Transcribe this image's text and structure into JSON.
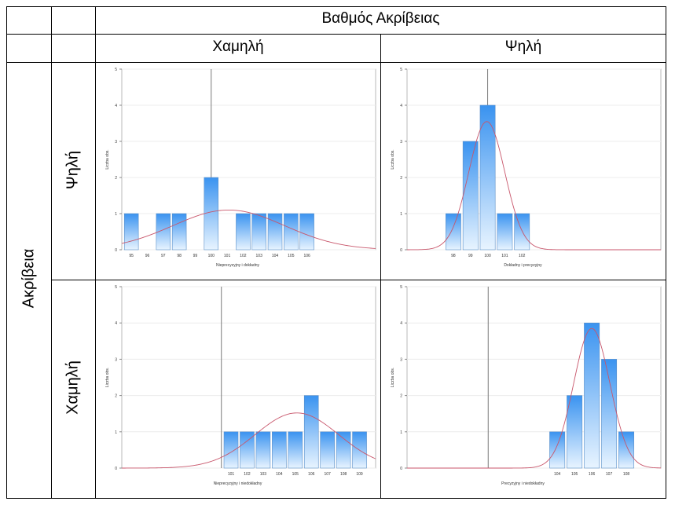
{
  "header": {
    "top": "Βαθμός Ακρίβειας",
    "col_low": "Χαμηλή",
    "col_high": "Ψηλή"
  },
  "rows": {
    "outer": "Ακρίβεια",
    "high": "Ψηλή",
    "low": "Χαμηλή"
  },
  "colors": {
    "bar_top": "#3a93f0",
    "bar_bottom": "#e8f4ff",
    "bar_stroke": "#5a8fc8",
    "curve": "#c8566b",
    "ref_line": "#7a7a7a"
  },
  "chart_data": [
    {
      "id": "high-low",
      "type": "bar",
      "xlabel": "Nieprecyzyjny i dokładny",
      "ylabel": "Liczba obs.",
      "ylim": [
        0,
        5
      ],
      "yticks": [
        "0",
        "1",
        "2",
        "3",
        "4",
        "5"
      ],
      "categories": [
        "95",
        "96",
        "97",
        "98",
        "99",
        "100",
        "101",
        "102",
        "103",
        "104",
        "105",
        "106"
      ],
      "values": [
        1,
        0,
        1,
        1,
        0,
        2,
        0,
        1,
        1,
        1,
        1,
        1
      ],
      "reference": "100",
      "curve": {
        "mean": 101.1,
        "sd": 3.5,
        "peak": 1.1
      },
      "xrange": [
        94.4,
        110.3
      ]
    },
    {
      "id": "high-high",
      "type": "bar",
      "xlabel": "Dokładny i precyzyjny",
      "ylabel": "Liczba obs.",
      "ylim": [
        0,
        5
      ],
      "yticks": [
        "0",
        "1",
        "2",
        "3",
        "4",
        "5"
      ],
      "categories": [
        "98",
        "99",
        "100",
        "101",
        "102"
      ],
      "values": [
        1,
        3,
        4,
        1,
        1
      ],
      "reference": "100",
      "curve": {
        "mean": 99.95,
        "sd": 1.05,
        "peak": 3.55
      },
      "xrange": [
        95.3,
        110.1
      ]
    },
    {
      "id": "low-low",
      "type": "bar",
      "xlabel": "Nieprecyzyjny i niedokładny",
      "ylabel": "Liczba obs.",
      "ylim": [
        0,
        5
      ],
      "yticks": [
        "0",
        "1",
        "2",
        "3",
        "4",
        "5"
      ],
      "categories": [
        "101",
        "102",
        "103",
        "104",
        "105",
        "106",
        "107",
        "108",
        "109"
      ],
      "values": [
        1,
        1,
        1,
        1,
        1,
        2,
        1,
        1,
        1
      ],
      "reference": "100.4",
      "curve": {
        "mean": 105.1,
        "sd": 2.6,
        "peak": 1.52
      },
      "xrange": [
        94.2,
        110.0
      ]
    },
    {
      "id": "low-high",
      "type": "bar",
      "xlabel": "Precyzyjny i niedokładny",
      "ylabel": "Liczba obs.",
      "ylim": [
        0,
        5
      ],
      "yticks": [
        "0",
        "1",
        "2",
        "3",
        "4",
        "5"
      ],
      "categories": [
        "104",
        "105",
        "106",
        "107",
        "108"
      ],
      "values": [
        1,
        2,
        4,
        3,
        1
      ],
      "reference": "100",
      "curve": {
        "mean": 106.0,
        "sd": 1.05,
        "peak": 3.85
      },
      "xrange": [
        95.3,
        110.0
      ]
    }
  ]
}
